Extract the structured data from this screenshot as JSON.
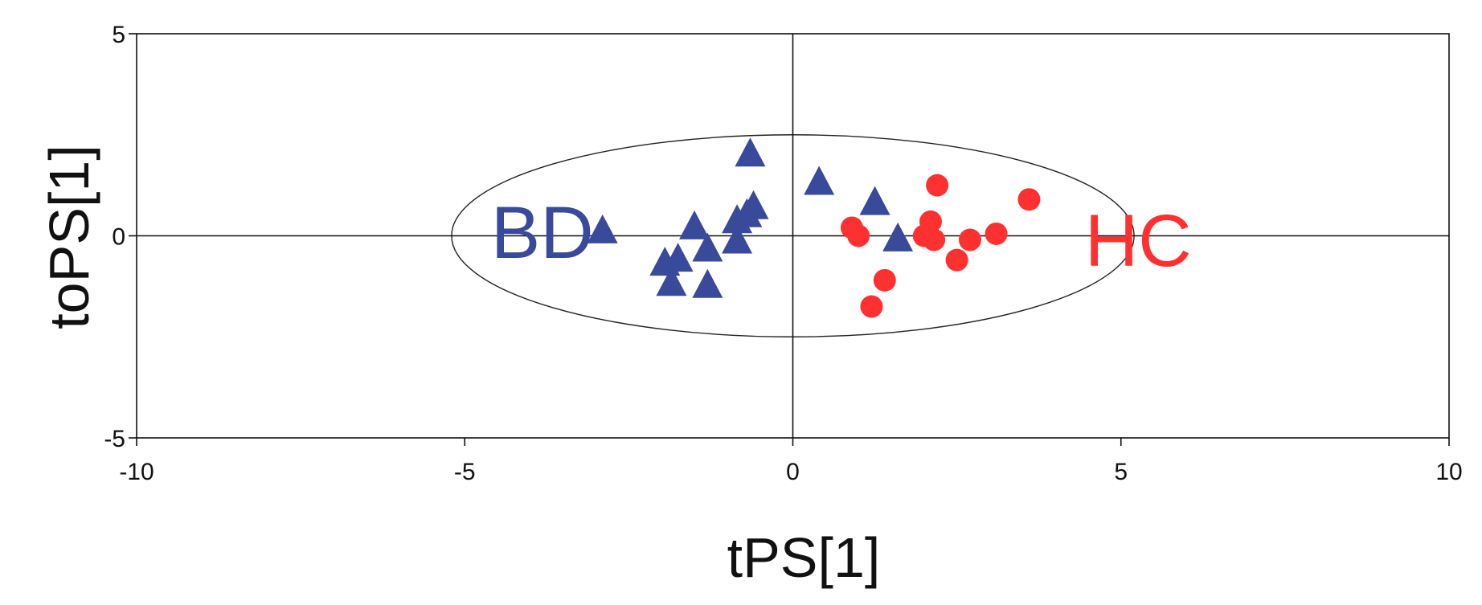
{
  "chart_data": {
    "type": "scatter",
    "title": "",
    "xlabel": "tPS[1]",
    "ylabel": "toPS[1]",
    "xlim": [
      -10,
      10
    ],
    "ylim": [
      -5,
      5
    ],
    "x_ticks": [
      -10,
      -5,
      0,
      5,
      10
    ],
    "y_ticks": [
      -5,
      0,
      5
    ],
    "x_tick_labels": [
      "-10",
      "-5",
      "0",
      "5",
      "10"
    ],
    "y_tick_labels": [
      "-5",
      "0",
      "5"
    ],
    "grid": false,
    "zero_lines": true,
    "ellipse": {
      "center": [
        0,
        0
      ],
      "radius_x": 5.2,
      "radius_y": 2.5
    },
    "series": [
      {
        "name": "BD",
        "color": "#3a4a9a",
        "marker": "triangle",
        "points": [
          [
            -2.9,
            0.1
          ],
          [
            -1.95,
            -0.7
          ],
          [
            -1.85,
            -1.2
          ],
          [
            -1.75,
            -0.6
          ],
          [
            -1.5,
            0.2
          ],
          [
            -1.3,
            -0.35
          ],
          [
            -1.3,
            -1.25
          ],
          [
            -0.85,
            -0.15
          ],
          [
            -0.85,
            0.35
          ],
          [
            -0.7,
            0.5
          ],
          [
            -0.65,
            2.0
          ],
          [
            -0.6,
            0.7
          ],
          [
            0.4,
            1.3
          ],
          [
            1.25,
            0.8
          ],
          [
            1.6,
            -0.1
          ]
        ]
      },
      {
        "name": "HC",
        "color": "#ff3030",
        "marker": "circle",
        "points": [
          [
            0.9,
            0.2
          ],
          [
            1.0,
            0.0
          ],
          [
            1.2,
            -1.75
          ],
          [
            1.4,
            -1.1
          ],
          [
            2.0,
            0.0
          ],
          [
            2.1,
            0.35
          ],
          [
            2.15,
            -0.1
          ],
          [
            2.2,
            1.25
          ],
          [
            2.5,
            -0.6
          ],
          [
            2.7,
            -0.1
          ],
          [
            3.1,
            0.05
          ],
          [
            3.6,
            0.9
          ]
        ]
      }
    ],
    "annotations": [
      {
        "text": "BD",
        "x": -4.6,
        "y": -0.55,
        "color": "#3a4a9a"
      },
      {
        "text": "HC",
        "x": 4.45,
        "y": -0.75,
        "color": "#ff3030"
      }
    ]
  }
}
